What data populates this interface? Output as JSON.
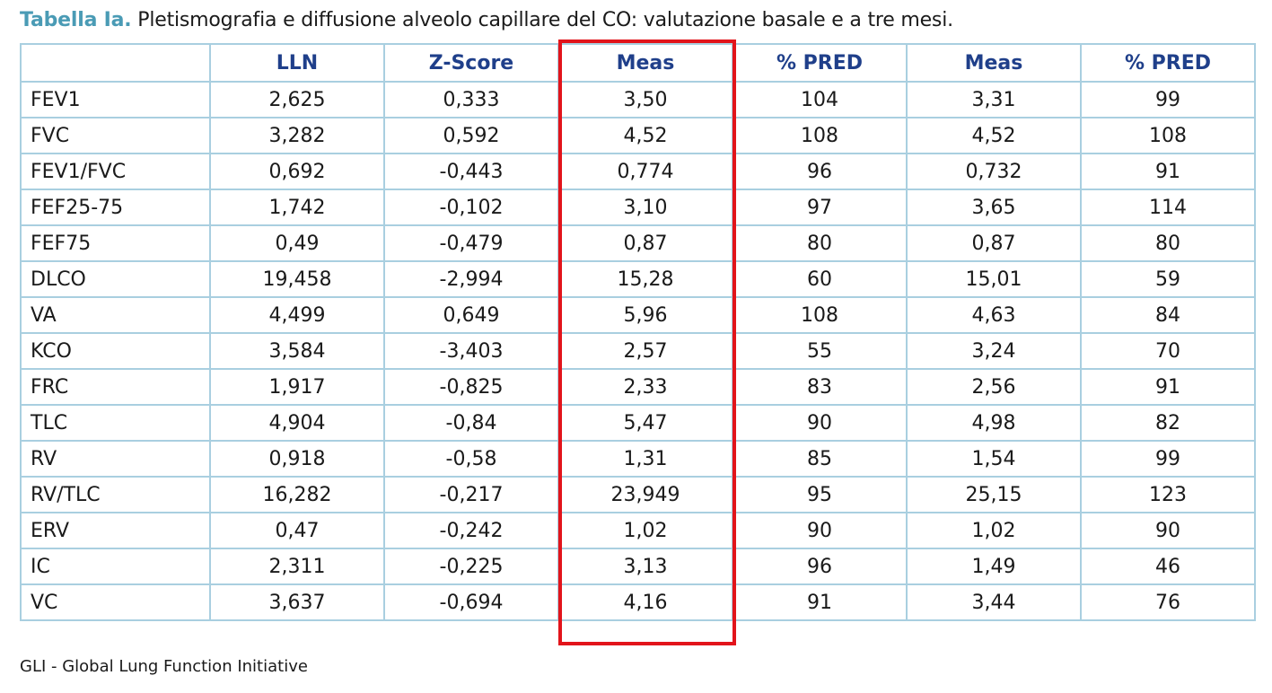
{
  "caption": {
    "label": "Tabella Ia.",
    "text": "Pletismografia e diffusione alveolo capillare del CO: valutazione basale e a tre mesi."
  },
  "table": {
    "headers": [
      "",
      "LLN",
      "Z-Score",
      "Meas",
      "% PRED",
      "Meas",
      "% PRED"
    ],
    "rows": [
      [
        "FEV1",
        "2,625",
        "0,333",
        "3,50",
        "104",
        "3,31",
        "99"
      ],
      [
        "FVC",
        "3,282",
        "0,592",
        "4,52",
        "108",
        "4,52",
        "108"
      ],
      [
        "FEV1/FVC",
        "0,692",
        "-0,443",
        "0,774",
        "96",
        "0,732",
        "91"
      ],
      [
        "FEF25-75",
        "1,742",
        "-0,102",
        "3,10",
        "97",
        "3,65",
        "114"
      ],
      [
        "FEF75",
        "0,49",
        "-0,479",
        "0,87",
        "80",
        "0,87",
        "80"
      ],
      [
        "DLCO",
        "19,458",
        "-2,994",
        "15,28",
        "60",
        "15,01",
        "59"
      ],
      [
        "VA",
        "4,499",
        "0,649",
        "5,96",
        "108",
        "4,63",
        "84"
      ],
      [
        "KCO",
        "3,584",
        "-3,403",
        "2,57",
        "55",
        "3,24",
        "70"
      ],
      [
        "FRC",
        "1,917",
        "-0,825",
        "2,33",
        "83",
        "2,56",
        "91"
      ],
      [
        "TLC",
        "4,904",
        "-0,84",
        "5,47",
        "90",
        "4,98",
        "82"
      ],
      [
        "RV",
        "0,918",
        "-0,58",
        "1,31",
        "85",
        "1,54",
        "99"
      ],
      [
        "RV/TLC",
        "16,282",
        "-0,217",
        "23,949",
        "95",
        "25,15",
        "123"
      ],
      [
        "ERV",
        "0,47",
        "-0,242",
        "1,02",
        "90",
        "1,02",
        "90"
      ],
      [
        "IC",
        "2,311",
        "-0,225",
        "3,13",
        "96",
        "1,49",
        "46"
      ],
      [
        "VC",
        "3,637",
        "-0,694",
        "4,16",
        "91",
        "3,44",
        "76"
      ]
    ]
  },
  "highlight_color": "#e2141b",
  "footnote": "GLI - Global Lung Function Initiative"
}
